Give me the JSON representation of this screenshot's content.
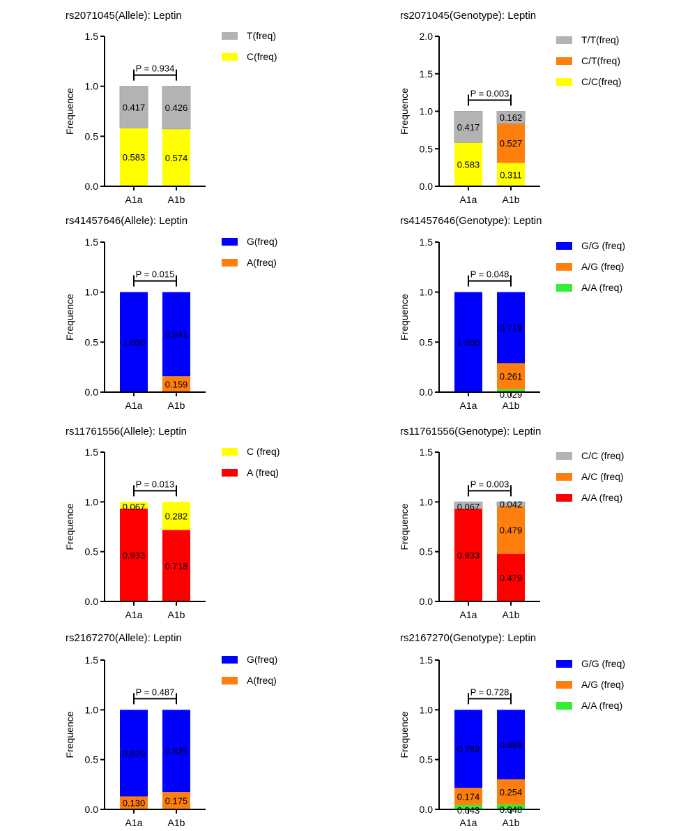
{
  "chart_data": [
    {
      "type": "bar",
      "stacked": true,
      "title": "rs2071045(Allele): Leptin",
      "ylabel": "Frequence",
      "ylim": [
        0,
        1.5
      ],
      "yticks": [
        "0.0",
        "0.5",
        "1.0",
        "1.5"
      ],
      "categories": [
        "A1a",
        "A1b"
      ],
      "p_value": "P = 0.934",
      "legend_position": "right",
      "series": [
        {
          "name": "C(freq)",
          "color": "#ffff00",
          "values": [
            0.583,
            0.574
          ],
          "labels": [
            "0.583",
            "0.574"
          ]
        },
        {
          "name": "T(freq)",
          "color": "#b3b3b3",
          "values": [
            0.417,
            0.426
          ],
          "labels": [
            "0.417",
            "0.426"
          ]
        }
      ]
    },
    {
      "type": "bar",
      "stacked": true,
      "title": "rs2071045(Genotype): Leptin",
      "ylabel": "Frequence",
      "ylim": [
        0,
        2.0
      ],
      "yticks": [
        "0.0",
        "0.5",
        "1.0",
        "1.5",
        "2.0"
      ],
      "categories": [
        "A1a",
        "A1b"
      ],
      "p_value": "P = 0.003",
      "legend_position": "right",
      "series": [
        {
          "name": "C/C(freq)",
          "color": "#ffff00",
          "values": [
            0.583,
            0.311
          ],
          "labels": [
            "0.583",
            "0.311"
          ]
        },
        {
          "name": "C/T(freq)",
          "color": "#ff7f0e",
          "values": [
            0,
            0.527
          ],
          "labels": [
            "",
            "0.527"
          ]
        },
        {
          "name": "T/T(freq)",
          "color": "#b3b3b3",
          "values": [
            0.417,
            0.162
          ],
          "labels": [
            "0.417",
            "0.162"
          ]
        }
      ]
    },
    {
      "type": "bar",
      "stacked": true,
      "title": "rs41457646(Allele): Leptin",
      "ylabel": "Frequence",
      "ylim": [
        0,
        1.5
      ],
      "yticks": [
        "0.0",
        "0.5",
        "1.0",
        "1.5"
      ],
      "categories": [
        "A1a",
        "A1b"
      ],
      "p_value": "P = 0.015",
      "legend_position": "right",
      "series": [
        {
          "name": "A(freq)",
          "color": "#ff7f0e",
          "values": [
            0,
            0.159
          ],
          "labels": [
            "",
            "0.159"
          ]
        },
        {
          "name": "G(freq)",
          "color": "#0000ff",
          "values": [
            1.0,
            0.841
          ],
          "labels": [
            "1.000",
            "0.841"
          ]
        }
      ]
    },
    {
      "type": "bar",
      "stacked": true,
      "title": "rs41457646(Genotype): Leptin",
      "ylabel": "Frequence",
      "ylim": [
        0,
        1.5
      ],
      "yticks": [
        "0.0",
        "0.5",
        "1.0",
        "1.5"
      ],
      "categories": [
        "A1a",
        "A1b"
      ],
      "p_value": "P = 0.048",
      "legend_position": "right",
      "series": [
        {
          "name": "A/A (freq)",
          "color": "#33ee33",
          "values": [
            0,
            0.029
          ],
          "labels": [
            "",
            "0.029"
          ]
        },
        {
          "name": "A/G (freq)",
          "color": "#ff7f0e",
          "values": [
            0,
            0.261
          ],
          "labels": [
            "",
            "0.261"
          ]
        },
        {
          "name": "G/G (freq)",
          "color": "#0000ff",
          "values": [
            1.0,
            0.71
          ],
          "labels": [
            "1.000",
            "0.710"
          ]
        }
      ]
    },
    {
      "type": "bar",
      "stacked": true,
      "title": "rs11761556(Allele): Leptin",
      "ylabel": "Frequence",
      "ylim": [
        0,
        1.5
      ],
      "yticks": [
        "0.0",
        "0.5",
        "1.0",
        "1.5"
      ],
      "categories": [
        "A1a",
        "A1b"
      ],
      "p_value": "P = 0.013",
      "legend_position": "right",
      "series": [
        {
          "name": "A (freq)",
          "color": "#ff0000",
          "values": [
            0.933,
            0.718
          ],
          "labels": [
            "0.933",
            "0.718"
          ]
        },
        {
          "name": "C (freq)",
          "color": "#ffff00",
          "values": [
            0.067,
            0.282
          ],
          "labels": [
            "0.067",
            "0.282"
          ]
        }
      ]
    },
    {
      "type": "bar",
      "stacked": true,
      "title": "rs11761556(Genotype): Leptin",
      "ylabel": "Frequence",
      "ylim": [
        0,
        1.5
      ],
      "yticks": [
        "0.0",
        "0.5",
        "1.0",
        "1.5"
      ],
      "categories": [
        "A1a",
        "A1b"
      ],
      "p_value": "P = 0.003",
      "legend_position": "right",
      "series": [
        {
          "name": "A/A (freq)",
          "color": "#ff0000",
          "values": [
            0.933,
            0.479
          ],
          "labels": [
            "0.933",
            "0.479"
          ]
        },
        {
          "name": "A/C (freq)",
          "color": "#ff7f0e",
          "values": [
            0,
            0.479
          ],
          "labels": [
            "",
            "0.479"
          ]
        },
        {
          "name": "C/C (freq)",
          "color": "#b3b3b3",
          "values": [
            0.067,
            0.042
          ],
          "labels": [
            "0.067",
            "0.042"
          ]
        }
      ]
    },
    {
      "type": "bar",
      "stacked": true,
      "title": "rs2167270(Allele): Leptin",
      "ylabel": "Frequence",
      "ylim": [
        0,
        1.5
      ],
      "yticks": [
        "0.0",
        "0.5",
        "1.0",
        "1.5"
      ],
      "categories": [
        "A1a",
        "A1b"
      ],
      "p_value": "P = 0.487",
      "legend_position": "right",
      "series": [
        {
          "name": "A(freq)",
          "color": "#ff7f0e",
          "values": [
            0.13,
            0.175
          ],
          "labels": [
            "0.130",
            "0.175"
          ]
        },
        {
          "name": "G(freq)",
          "color": "#0000ff",
          "values": [
            0.87,
            0.825
          ],
          "labels": [
            "0.870",
            "0.825"
          ]
        }
      ]
    },
    {
      "type": "bar",
      "stacked": true,
      "title": "rs2167270(Genotype): Leptin",
      "ylabel": "Frequence",
      "ylim": [
        0,
        1.5
      ],
      "yticks": [
        "0.0",
        "0.5",
        "1.0",
        "1.5"
      ],
      "categories": [
        "A1a",
        "A1b"
      ],
      "p_value": "P = 0.728",
      "legend_position": "right",
      "series": [
        {
          "name": "A/A (freq)",
          "color": "#33ee33",
          "values": [
            0.043,
            0.048
          ],
          "labels": [
            "0.043",
            "0.048"
          ]
        },
        {
          "name": "A/G (freq)",
          "color": "#ff7f0e",
          "values": [
            0.174,
            0.254
          ],
          "labels": [
            "0.174",
            "0.254"
          ]
        },
        {
          "name": "G/G (freq)",
          "color": "#0000ff",
          "values": [
            0.783,
            0.698
          ],
          "labels": [
            "0.783",
            "0.698"
          ]
        }
      ]
    }
  ]
}
